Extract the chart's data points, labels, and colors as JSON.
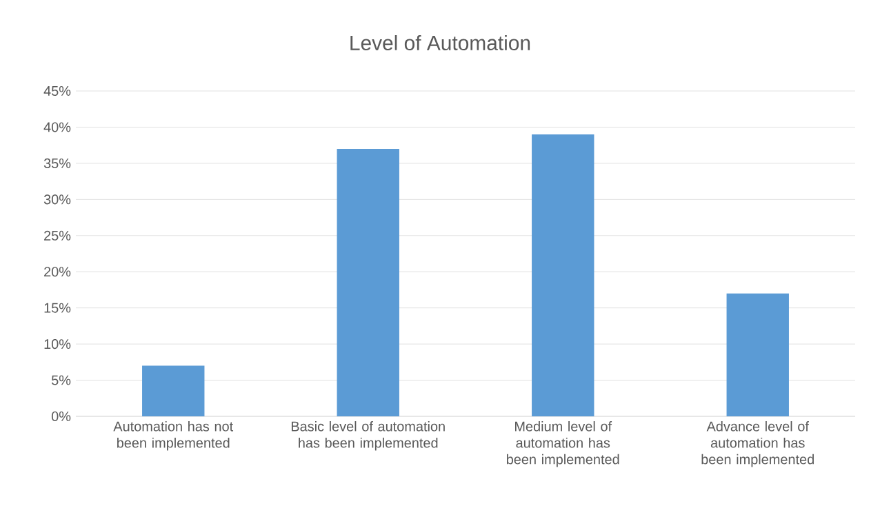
{
  "chart_data": {
    "type": "bar",
    "title": "Level of Automation",
    "categories": [
      "Automation has not been implemented",
      "Basic level of automation has been implemented",
      "Medium level of automation has been implemented",
      "Advance level of automation has been implemented"
    ],
    "values": [
      7,
      37,
      39,
      17
    ],
    "color": "#5b9bd5",
    "ylim": [
      0,
      45
    ],
    "yticks": [
      {
        "value": 0,
        "label": "0%"
      },
      {
        "value": 5,
        "label": "5%"
      },
      {
        "value": 10,
        "label": "10%"
      },
      {
        "value": 15,
        "label": "15%"
      },
      {
        "value": 20,
        "label": "20%"
      },
      {
        "value": 25,
        "label": "25%"
      },
      {
        "value": 30,
        "label": "30%"
      },
      {
        "value": 35,
        "label": "35%"
      },
      {
        "value": 40,
        "label": "40%"
      },
      {
        "value": 45,
        "label": "45%"
      }
    ],
    "grid": "y"
  }
}
